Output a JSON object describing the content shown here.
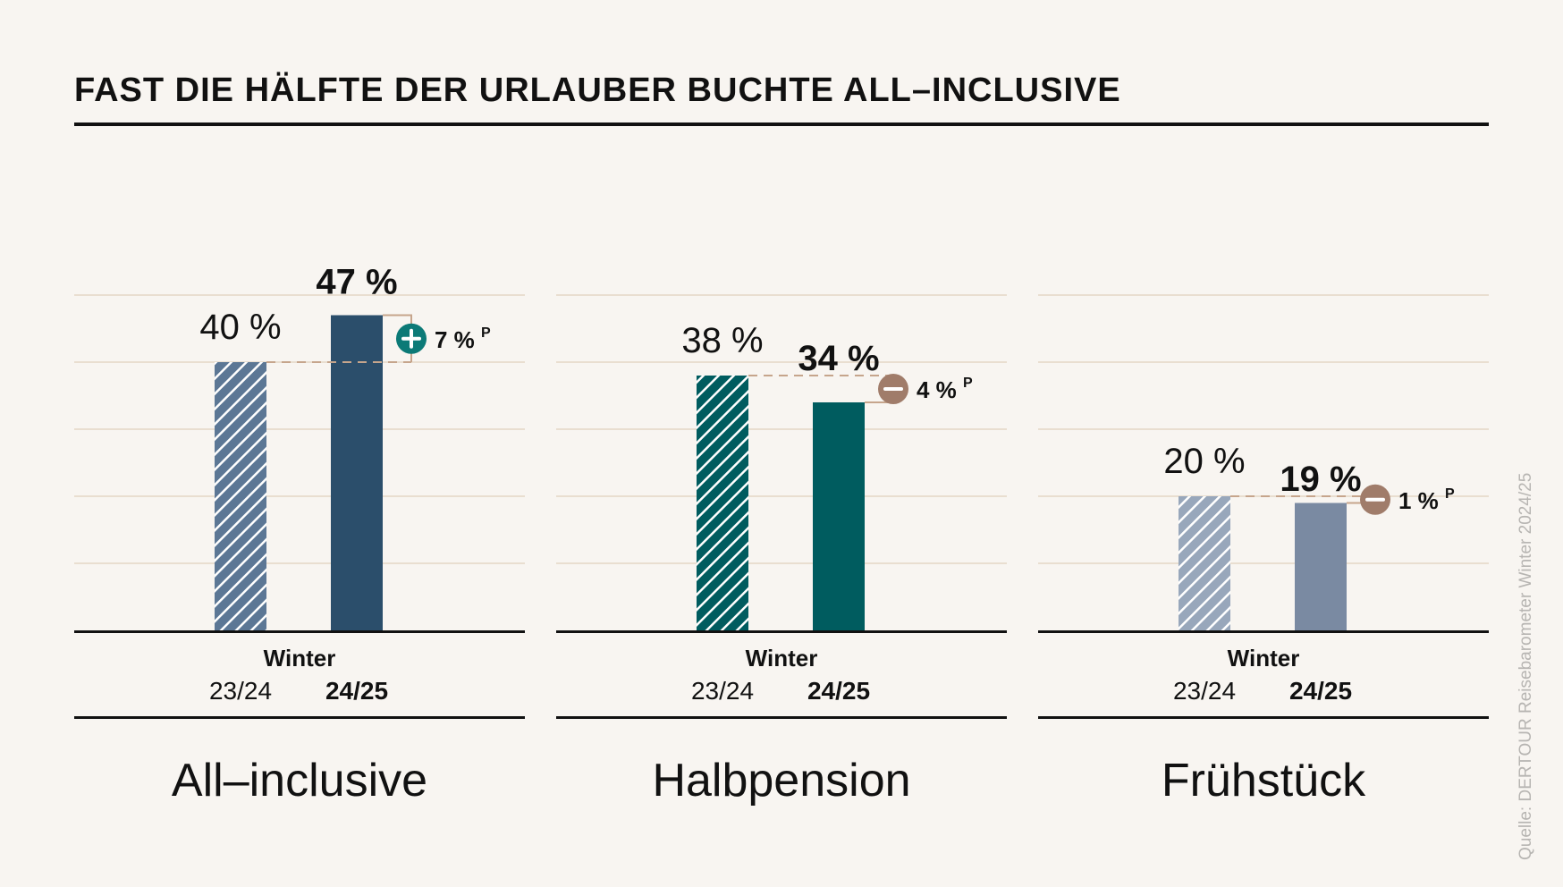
{
  "title": "FAST DIE HÄLFTE DER URLAUBER BUCHTE ALL–INCLUSIVE",
  "source": "Quelle: DERTOUR Reisebarometer Winter 2024/25",
  "x_group_label": "Winter",
  "period_labels": [
    "23/24",
    "24/25"
  ],
  "colors": {
    "allinclusive": "#2b4e6b",
    "allinclusive_prev": "#5c7795",
    "halbpension": "#005c5f",
    "halbpension_prev": "#005c5f",
    "fruehstueck": "#7a8aa2",
    "fruehstueck_prev": "#98a7bb",
    "plus_badge": "#0c7a77",
    "minus_badge": "#a07c6a",
    "reference_line": "#c6a58c",
    "grid": "#e4d6c6",
    "axis": "#111111"
  },
  "chart_data": {
    "type": "bar",
    "title": "FAST DIE HÄLFTE DER URLAUBER BUCHTE ALL–INCLUSIVE",
    "categories": [
      "All–inclusive",
      "Halbpension",
      "Frühstück"
    ],
    "series": [
      {
        "name": "Winter 23/24",
        "values": [
          40,
          38,
          20
        ]
      },
      {
        "name": "Winter 24/25",
        "values": [
          47,
          34,
          19
        ]
      }
    ],
    "value_labels_prev": [
      "40 %",
      "38 %",
      "20 %"
    ],
    "value_labels_curr": [
      "47 %",
      "34 %",
      "19 %"
    ],
    "changes": [
      {
        "sign": "+",
        "label": "7 %",
        "unit_suffix": "P"
      },
      {
        "sign": "-",
        "label": "4 %",
        "unit_suffix": "P"
      },
      {
        "sign": "-",
        "label": "1 %",
        "unit_suffix": "P"
      }
    ],
    "ylim": [
      0,
      60
    ],
    "grid": true,
    "legend": "none",
    "xlabel": "",
    "ylabel": ""
  }
}
